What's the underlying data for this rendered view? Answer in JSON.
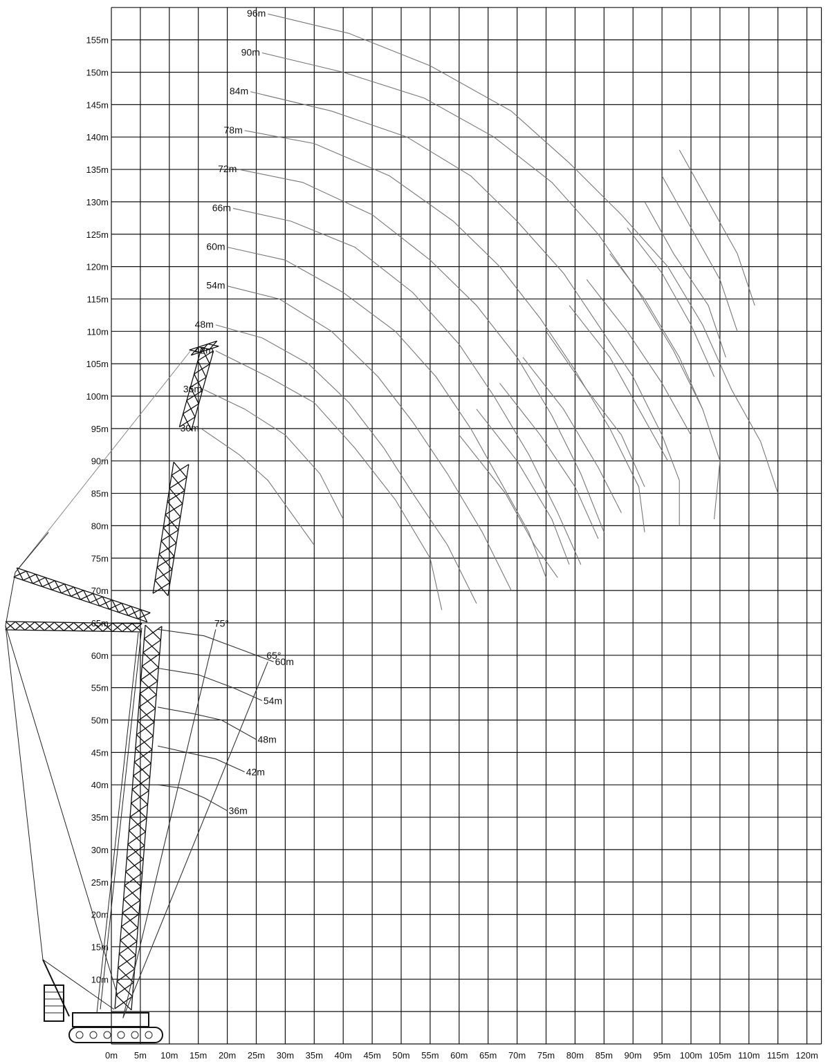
{
  "chart_data": {
    "type": "line",
    "title": "",
    "xlabel": "",
    "ylabel": "",
    "xlim": [
      0,
      122
    ],
    "ylim": [
      0,
      160
    ],
    "grid": true,
    "x_ticks": [
      "0m",
      "5m",
      "10m",
      "15m",
      "20m",
      "25m",
      "30m",
      "35m",
      "40m",
      "45m",
      "50m",
      "55m",
      "60m",
      "65m",
      "70m",
      "75m",
      "80m",
      "85m",
      "90m",
      "95m",
      "100m",
      "105m",
      "110m",
      "115m",
      "120m"
    ],
    "y_ticks": [
      "10m",
      "15m",
      "20m",
      "25m",
      "30m",
      "35m",
      "40m",
      "45m",
      "50m",
      "55m",
      "60m",
      "65m",
      "70m",
      "75m",
      "80m",
      "85m",
      "90m",
      "95m",
      "100m",
      "105m",
      "110m",
      "115m",
      "120m",
      "125m",
      "130m",
      "135m",
      "140m",
      "145m",
      "150m",
      "155m"
    ],
    "jib_series": [
      {
        "name": "30m",
        "label_at": [
          15.5,
          95
        ],
        "points": [
          [
            15.5,
            95
          ],
          [
            22,
            91
          ],
          [
            27,
            87
          ],
          [
            31,
            82
          ],
          [
            35,
            77
          ]
        ]
      },
      {
        "name": "36m",
        "label_at": [
          16,
          101
        ],
        "points": [
          [
            16,
            101
          ],
          [
            23,
            98
          ],
          [
            30,
            94
          ],
          [
            36,
            88
          ],
          [
            40,
            81
          ]
        ]
      },
      {
        "name": "42m",
        "label_at": [
          18,
          107
        ],
        "points": [
          [
            18,
            107
          ],
          [
            27,
            103
          ],
          [
            35,
            99
          ],
          [
            42,
            92
          ],
          [
            49,
            84
          ],
          [
            55,
            75
          ],
          [
            57,
            67
          ]
        ]
      },
      {
        "name": "48m",
        "label_at": [
          18,
          111
        ],
        "points": [
          [
            18,
            111
          ],
          [
            26,
            109
          ],
          [
            34,
            105
          ],
          [
            41,
            99
          ],
          [
            47,
            92
          ],
          [
            52,
            85
          ],
          [
            58,
            77
          ],
          [
            63,
            68
          ]
        ]
      },
      {
        "name": "54m",
        "label_at": [
          20,
          117
        ],
        "points": [
          [
            20,
            117
          ],
          [
            29,
            115
          ],
          [
            38,
            110
          ],
          [
            46,
            103
          ],
          [
            52,
            96
          ],
          [
            58,
            88
          ],
          [
            64,
            79
          ],
          [
            69,
            70
          ]
        ]
      },
      {
        "name": "60m",
        "label_at": [
          20,
          123
        ],
        "points": [
          [
            20,
            123
          ],
          [
            30,
            121
          ],
          [
            40,
            116
          ],
          [
            49,
            110
          ],
          [
            56,
            103
          ],
          [
            62,
            95
          ],
          [
            67,
            87
          ],
          [
            72,
            79
          ],
          [
            75,
            72
          ]
        ]
      },
      {
        "name": "66m",
        "label_at": [
          21,
          129
        ],
        "points": [
          [
            21,
            129
          ],
          [
            31,
            127
          ],
          [
            42,
            123
          ],
          [
            52,
            116
          ],
          [
            60,
            108
          ],
          [
            66,
            100
          ],
          [
            72,
            91
          ],
          [
            77,
            82
          ],
          [
            81,
            74
          ]
        ]
      },
      {
        "name": "72m",
        "label_at": [
          22,
          135
        ],
        "points": [
          [
            22,
            135
          ],
          [
            33,
            133
          ],
          [
            45,
            128
          ],
          [
            55,
            121
          ],
          [
            63,
            114
          ],
          [
            70,
            106
          ],
          [
            76,
            97
          ],
          [
            81,
            88
          ],
          [
            85,
            79
          ]
        ]
      },
      {
        "name": "78m",
        "label_at": [
          23,
          141
        ],
        "points": [
          [
            23,
            141
          ],
          [
            35,
            139
          ],
          [
            48,
            134
          ],
          [
            59,
            127
          ],
          [
            67,
            120
          ],
          [
            74,
            112
          ],
          [
            80,
            104
          ],
          [
            86,
            95
          ],
          [
            91,
            86
          ],
          [
            92,
            79
          ]
        ]
      },
      {
        "name": "84m",
        "label_at": [
          24,
          147
        ],
        "points": [
          [
            24,
            147
          ],
          [
            38,
            144
          ],
          [
            51,
            140
          ],
          [
            62,
            134
          ],
          [
            70,
            127
          ],
          [
            78,
            119
          ],
          [
            84,
            111
          ],
          [
            90,
            103
          ],
          [
            95,
            94
          ],
          [
            98,
            87
          ],
          [
            98,
            80
          ]
        ]
      },
      {
        "name": "90m",
        "label_at": [
          26,
          153
        ],
        "points": [
          [
            26,
            153
          ],
          [
            40,
            150
          ],
          [
            54,
            146
          ],
          [
            66,
            140
          ],
          [
            76,
            133
          ],
          [
            84,
            125
          ],
          [
            91,
            116
          ],
          [
            97,
            107
          ],
          [
            102,
            98
          ],
          [
            105,
            90
          ],
          [
            104,
            81
          ]
        ]
      },
      {
        "name": "96m",
        "label_at": [
          27,
          159
        ],
        "points": [
          [
            27,
            159
          ],
          [
            41,
            156
          ],
          [
            55,
            151
          ],
          [
            69,
            144
          ],
          [
            79,
            136
          ],
          [
            88,
            128
          ],
          [
            96,
            120
          ],
          [
            102,
            111
          ],
          [
            107,
            101
          ],
          [
            112,
            93
          ],
          [
            115,
            85
          ]
        ]
      }
    ],
    "angle_curves": [
      {
        "points": [
          [
            60,
            94
          ],
          [
            68,
            85
          ],
          [
            73,
            77
          ],
          [
            77,
            72
          ]
        ]
      },
      {
        "points": [
          [
            63,
            98
          ],
          [
            70,
            90
          ],
          [
            76,
            81
          ],
          [
            79,
            74
          ]
        ]
      },
      {
        "points": [
          [
            67,
            102
          ],
          [
            74,
            94
          ],
          [
            80,
            86
          ],
          [
            84,
            78
          ]
        ]
      },
      {
        "points": [
          [
            71,
            106
          ],
          [
            78,
            98
          ],
          [
            84,
            89
          ],
          [
            88,
            82
          ]
        ]
      },
      {
        "points": [
          [
            75,
            110
          ],
          [
            82,
            101
          ],
          [
            88,
            94
          ],
          [
            92,
            86
          ]
        ]
      },
      {
        "points": [
          [
            79,
            114
          ],
          [
            86,
            106
          ],
          [
            91,
            98
          ],
          [
            96,
            90
          ]
        ]
      },
      {
        "points": [
          [
            82,
            118
          ],
          [
            89,
            110
          ],
          [
            95,
            102
          ],
          [
            100,
            94
          ]
        ]
      },
      {
        "points": [
          [
            86,
            122
          ],
          [
            92,
            115
          ],
          [
            98,
            106
          ],
          [
            102,
            98
          ]
        ]
      },
      {
        "points": [
          [
            89,
            126
          ],
          [
            95,
            119
          ],
          [
            100,
            111
          ],
          [
            104,
            103
          ]
        ]
      },
      {
        "points": [
          [
            92,
            130
          ],
          [
            97,
            122
          ],
          [
            103,
            114
          ],
          [
            106,
            106
          ]
        ]
      },
      {
        "points": [
          [
            95,
            134
          ],
          [
            100,
            126
          ],
          [
            105,
            118
          ],
          [
            108,
            110
          ]
        ]
      },
      {
        "points": [
          [
            98,
            138
          ],
          [
            103,
            130
          ],
          [
            108,
            122
          ],
          [
            111,
            114
          ]
        ]
      }
    ],
    "boom_series": [
      {
        "name": "36m",
        "points": [
          [
            8,
            40
          ],
          [
            12,
            39.5
          ],
          [
            16,
            38
          ],
          [
            20,
            36
          ]
        ]
      },
      {
        "name": "42m",
        "points": [
          [
            8,
            46
          ],
          [
            13,
            45
          ],
          [
            18,
            44
          ],
          [
            23,
            42
          ]
        ]
      },
      {
        "name": "48m",
        "points": [
          [
            8,
            52
          ],
          [
            14,
            51
          ],
          [
            19,
            50
          ],
          [
            25,
            47
          ]
        ]
      },
      {
        "name": "54m",
        "points": [
          [
            8,
            58
          ],
          [
            15,
            57
          ],
          [
            21,
            55
          ],
          [
            26,
            53
          ]
        ]
      },
      {
        "name": "60m",
        "points": [
          [
            8,
            64
          ],
          [
            16,
            63
          ],
          [
            22,
            61
          ],
          [
            28,
            59
          ]
        ]
      }
    ],
    "angle_lines": [
      {
        "name": "75°",
        "points": [
          [
            2,
            4
          ],
          [
            18,
            64
          ]
        ]
      },
      {
        "name": "65°",
        "points": [
          [
            2,
            4
          ],
          [
            27,
            59
          ]
        ]
      }
    ],
    "boom_labels": {
      "b36": "36m",
      "b42": "42m",
      "b48": "48m",
      "b54": "54m",
      "b60": "60m",
      "a75": "75°",
      "a65": "65°"
    }
  }
}
